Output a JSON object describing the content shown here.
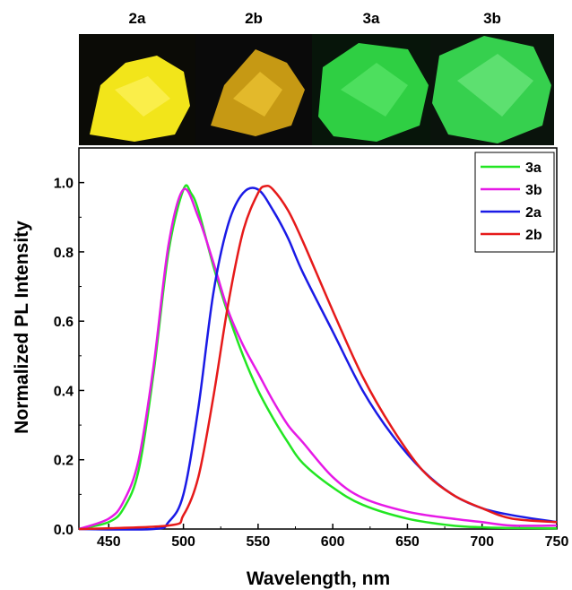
{
  "photos": [
    {
      "label": "2a",
      "color": "#f2e51a"
    },
    {
      "label": "2b",
      "color": "#e8b316"
    },
    {
      "label": "3a",
      "color": "#2fcf43"
    },
    {
      "label": "3b",
      "color": "#36d04e"
    }
  ],
  "chart_data": {
    "type": "line",
    "title": "",
    "xlabel": "Wavelength, nm",
    "ylabel": "Normalized PL Intensity",
    "xlim": [
      430,
      750
    ],
    "ylim": [
      0,
      1.1
    ],
    "x_ticks": [
      450,
      500,
      550,
      600,
      650,
      700,
      750
    ],
    "y_ticks": [
      0.0,
      0.2,
      0.4,
      0.6,
      0.8,
      1.0
    ],
    "x_tick_labels": [
      "450",
      "500",
      "550",
      "600",
      "650",
      "700",
      "750"
    ],
    "y_tick_labels": [
      "0.0",
      "0.2",
      "0.4",
      "0.6",
      "0.8",
      "1.0"
    ],
    "grid": false,
    "legend_position": "top-right",
    "series": [
      {
        "name": "3a",
        "color": "#22e622",
        "x": [
          430,
          450,
          460,
          470,
          480,
          490,
          500,
          505,
          510,
          520,
          530,
          540,
          550,
          560,
          570,
          580,
          600,
          620,
          650,
          680,
          700,
          720,
          750
        ],
        "y": [
          0.0,
          0.02,
          0.06,
          0.17,
          0.45,
          0.8,
          0.98,
          0.97,
          0.92,
          0.76,
          0.62,
          0.5,
          0.4,
          0.32,
          0.25,
          0.19,
          0.12,
          0.07,
          0.03,
          0.01,
          0.005,
          0.003,
          0.002
        ]
      },
      {
        "name": "3b",
        "color": "#e619e6",
        "x": [
          430,
          450,
          460,
          470,
          480,
          490,
          500,
          510,
          520,
          530,
          540,
          550,
          560,
          570,
          580,
          600,
          620,
          650,
          680,
          700,
          720,
          750
        ],
        "y": [
          0.0,
          0.03,
          0.08,
          0.2,
          0.47,
          0.82,
          0.98,
          0.9,
          0.77,
          0.63,
          0.53,
          0.45,
          0.37,
          0.3,
          0.25,
          0.15,
          0.09,
          0.05,
          0.03,
          0.02,
          0.01,
          0.01
        ]
      },
      {
        "name": "2a",
        "color": "#1a1ae6",
        "x": [
          430,
          480,
          490,
          500,
          510,
          520,
          530,
          540,
          550,
          560,
          570,
          580,
          600,
          620,
          640,
          660,
          680,
          700,
          720,
          750
        ],
        "y": [
          0.0,
          0.0,
          0.02,
          0.1,
          0.35,
          0.68,
          0.88,
          0.97,
          0.98,
          0.92,
          0.84,
          0.74,
          0.57,
          0.4,
          0.27,
          0.17,
          0.1,
          0.06,
          0.04,
          0.02
        ]
      },
      {
        "name": "2b",
        "color": "#e61a1a",
        "x": [
          430,
          490,
          500,
          510,
          520,
          530,
          540,
          550,
          555,
          560,
          570,
          580,
          600,
          620,
          640,
          660,
          680,
          700,
          720,
          750
        ],
        "y": [
          0.0,
          0.01,
          0.04,
          0.15,
          0.38,
          0.65,
          0.86,
          0.97,
          0.99,
          0.98,
          0.92,
          0.83,
          0.63,
          0.44,
          0.29,
          0.17,
          0.1,
          0.06,
          0.03,
          0.02
        ]
      }
    ]
  }
}
